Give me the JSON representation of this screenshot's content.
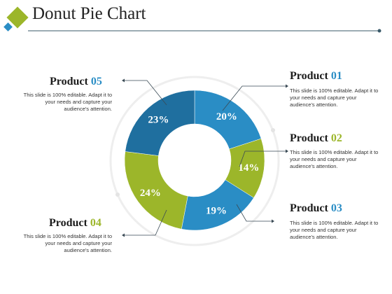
{
  "header": {
    "title": "Donut Pie Chart"
  },
  "colors": {
    "blue": "#2a8dc5",
    "darkblue": "#1f6f9f",
    "green": "#9cb62a",
    "text": "#222222",
    "line": "#3a5a6a"
  },
  "products": {
    "p1": {
      "name": "Product ",
      "num": "01",
      "desc": "This slide is 100% editable. Adapt it to your needs and capture your audience's attention."
    },
    "p2": {
      "name": "Product ",
      "num": "02",
      "desc": "This slide is 100% editable. Adapt it to your needs and capture your audience's attention."
    },
    "p3": {
      "name": "Product ",
      "num": "03",
      "desc": "This slide is 100% editable. Adapt it to your needs and capture your audience's attention."
    },
    "p4": {
      "name": "Product ",
      "num": "04",
      "desc": "This slide is 100% editable. Adapt it to your needs and capture your audience's attention."
    },
    "p5": {
      "name": "Product ",
      "num": "05",
      "desc": "This slide is 100% editable. Adapt it to your needs and capture your audience's attention."
    }
  },
  "chart_data": {
    "type": "pie",
    "donut": true,
    "categories": [
      "Product 01",
      "Product 02",
      "Product 03",
      "Product 04",
      "Product 05"
    ],
    "values": [
      20,
      14,
      19,
      24,
      23
    ],
    "labels": [
      "20%",
      "14%",
      "19%",
      "24%",
      "23%"
    ],
    "colors": [
      "#2a8dc5",
      "#9cb62a",
      "#2a8dc5",
      "#9cb62a",
      "#1f6f9f"
    ],
    "start_angle_deg": 0,
    "direction": "clockwise"
  }
}
